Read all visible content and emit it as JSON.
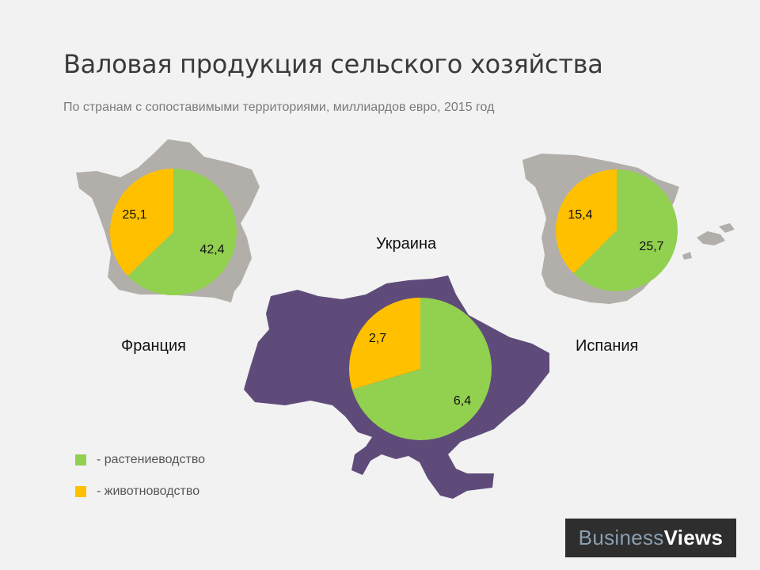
{
  "title": "Валовая продукция сельского хозяйства",
  "subtitle": "По странам с сопоставимыми территориями, миллиардов евро, 2015 год",
  "colors": {
    "crops": "#92d050",
    "livestock": "#ffc000",
    "map_grey": "#b2afaa",
    "ukraine_purple": "#5f4b7a",
    "background": "#f2f2f2"
  },
  "icons": {
    "france": "france-map-icon",
    "spain": "spain-map-icon",
    "ukraine": "ukraine-map-icon"
  },
  "chart_data": [
    {
      "type": "pie",
      "country": "Франция",
      "series": [
        {
          "name": "растениеводство",
          "value": 42.4,
          "label": "42,4"
        },
        {
          "name": "животноводство",
          "value": 25.1,
          "label": "25,1"
        }
      ]
    },
    {
      "type": "pie",
      "country": "Украина",
      "series": [
        {
          "name": "растениеводство",
          "value": 6.4,
          "label": "6,4"
        },
        {
          "name": "животноводство",
          "value": 2.7,
          "label": "2,7"
        }
      ]
    },
    {
      "type": "pie",
      "country": "Испания",
      "series": [
        {
          "name": "растениеводство",
          "value": 25.7,
          "label": "25,7"
        },
        {
          "name": "животноводство",
          "value": 15.4,
          "label": "15,4"
        }
      ]
    }
  ],
  "legend": [
    {
      "label": "- растениеводство",
      "color": "#92d050"
    },
    {
      "label": "- животноводство",
      "color": "#ffc000"
    }
  ],
  "logo": {
    "part1": "Business",
    "part2": "Views"
  }
}
